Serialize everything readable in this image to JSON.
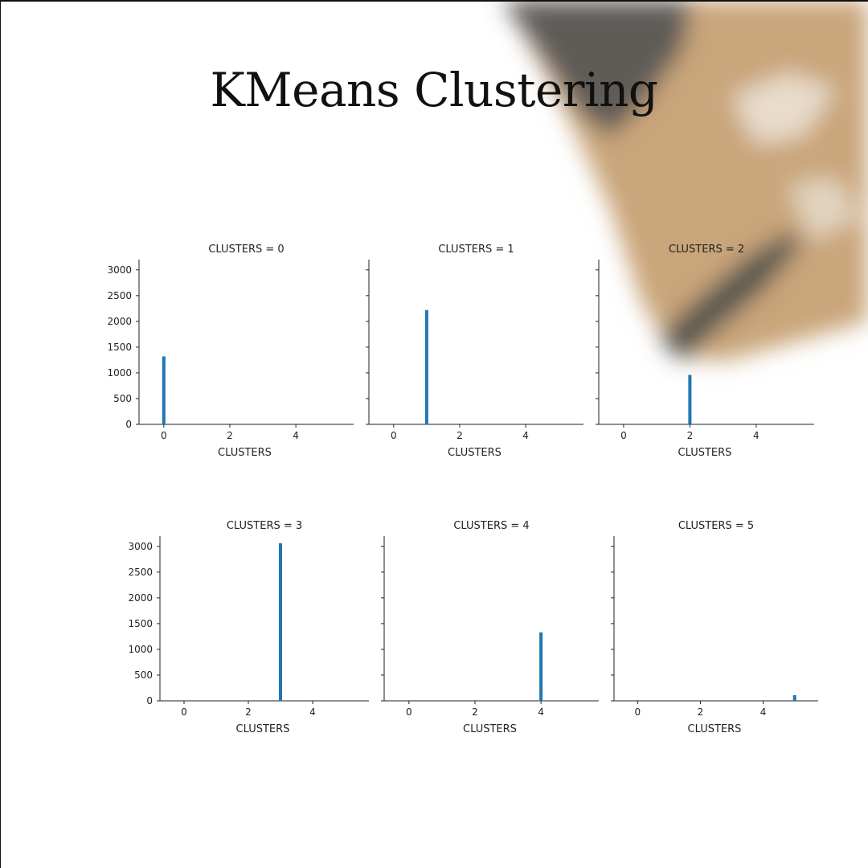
{
  "slide": {
    "title": "KMeans Clustering",
    "colors": {
      "bar": "#1f77b4",
      "axis": "#222222",
      "photo_tan": "#c9a57a",
      "photo_dark": "#5b5a57"
    }
  },
  "chart_data": {
    "type": "bar",
    "layout": "facet-grid 2x3",
    "x_domain": [
      -0.75,
      5.75
    ],
    "y_domain": [
      0,
      3200
    ],
    "xticks": [
      0,
      2,
      4
    ],
    "yticks": [
      0,
      500,
      1000,
      1500,
      2000,
      2500,
      3000
    ],
    "xlabel": "CLUSTERS",
    "ylabel": "",
    "grid": false,
    "shared_y": true,
    "facets": [
      {
        "title": "CLUSTERS = 0",
        "x": 0,
        "value": 1320
      },
      {
        "title": "CLUSTERS = 1",
        "x": 1,
        "value": 2220
      },
      {
        "title": "CLUSTERS = 2",
        "x": 2,
        "value": 960
      },
      {
        "title": "CLUSTERS = 3",
        "x": 3,
        "value": 3060
      },
      {
        "title": "CLUSTERS = 4",
        "x": 4,
        "value": 1330
      },
      {
        "title": "CLUSTERS = 5",
        "x": 5,
        "value": 110
      }
    ]
  }
}
